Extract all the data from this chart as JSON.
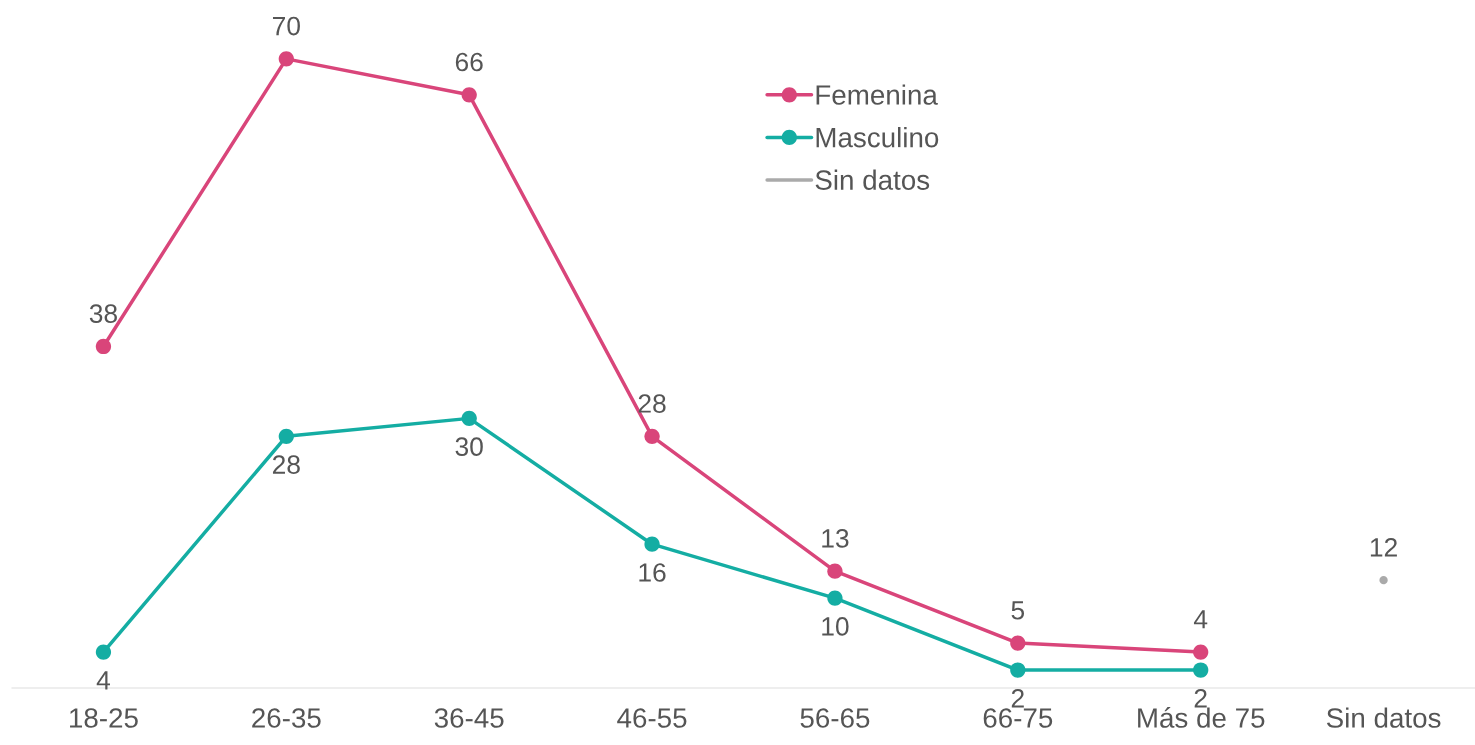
{
  "chart_data": {
    "type": "line",
    "categories": [
      "18-25",
      "26-35",
      "36-45",
      "46-55",
      "56-65",
      "66-75",
      "Más de 75",
      "Sin datos"
    ],
    "series": [
      {
        "name": "Femenina",
        "color": "#d9457a",
        "values": [
          38,
          70,
          66,
          28,
          13,
          5,
          4,
          null
        ]
      },
      {
        "name": "Masculino",
        "color": "#14ada3",
        "values": [
          4,
          28,
          30,
          16,
          10,
          2,
          2,
          null
        ]
      },
      {
        "name": "Sin datos",
        "color": "#aaaaaa",
        "values": [
          null,
          null,
          null,
          null,
          null,
          null,
          null,
          12
        ]
      }
    ],
    "marker": "circle",
    "line_style": "solid",
    "data_labels": true,
    "grid": false,
    "legend": "top"
  }
}
